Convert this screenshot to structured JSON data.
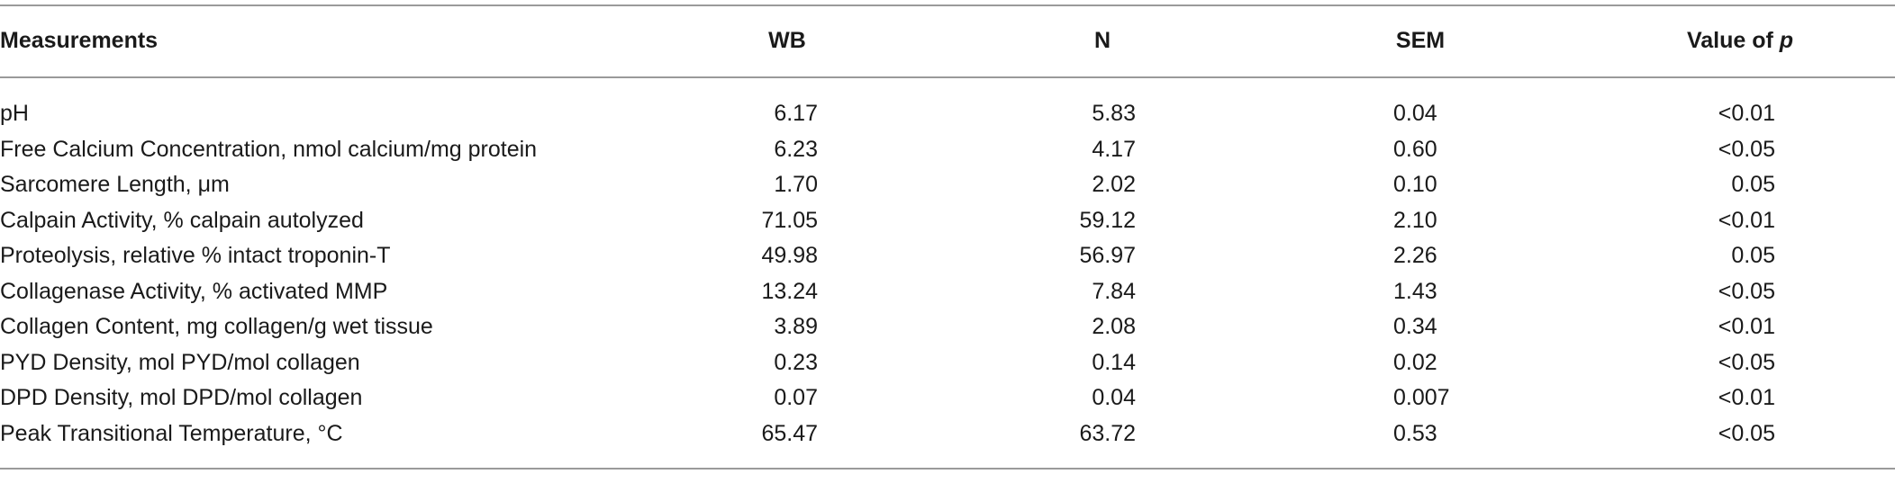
{
  "table": {
    "header": [
      "Measurements",
      "WB",
      "N",
      "SEM",
      [
        "Value of",
        "p"
      ]
    ],
    "rows": [
      [
        "pH",
        "6.17",
        "5.83",
        "0.04",
        "<0.01"
      ],
      [
        "Free Calcium Concentration, nmol calcium/mg protein",
        "6.23",
        "4.17",
        "0.60",
        "<0.05"
      ],
      [
        "Sarcomere Length, μm",
        "1.70",
        "2.02",
        "0.10",
        "0.05"
      ],
      [
        "Calpain Activity, % calpain autolyzed",
        "71.05",
        "59.12",
        "2.10",
        "<0.01"
      ],
      [
        "Proteolysis, relative % intact troponin-T",
        "49.98",
        "56.97",
        "2.26",
        "0.05"
      ],
      [
        "Collagenase Activity, % activated MMP",
        "13.24",
        "7.84",
        "1.43",
        "<0.05"
      ],
      [
        "Collagen Content, mg collagen/g wet tissue",
        "3.89",
        "2.08",
        "0.34",
        "<0.01"
      ],
      [
        "PYD Density, mol PYD/mol collagen",
        "0.23",
        "0.14",
        "0.02",
        "<0.05"
      ],
      [
        "DPD Density, mol DPD/mol collagen",
        "0.07",
        "0.04",
        "0.007",
        "<0.01"
      ],
      [
        "Peak Transitional Temperature, °C",
        "65.47",
        "63.72",
        "0.53",
        "<0.05"
      ]
    ]
  }
}
